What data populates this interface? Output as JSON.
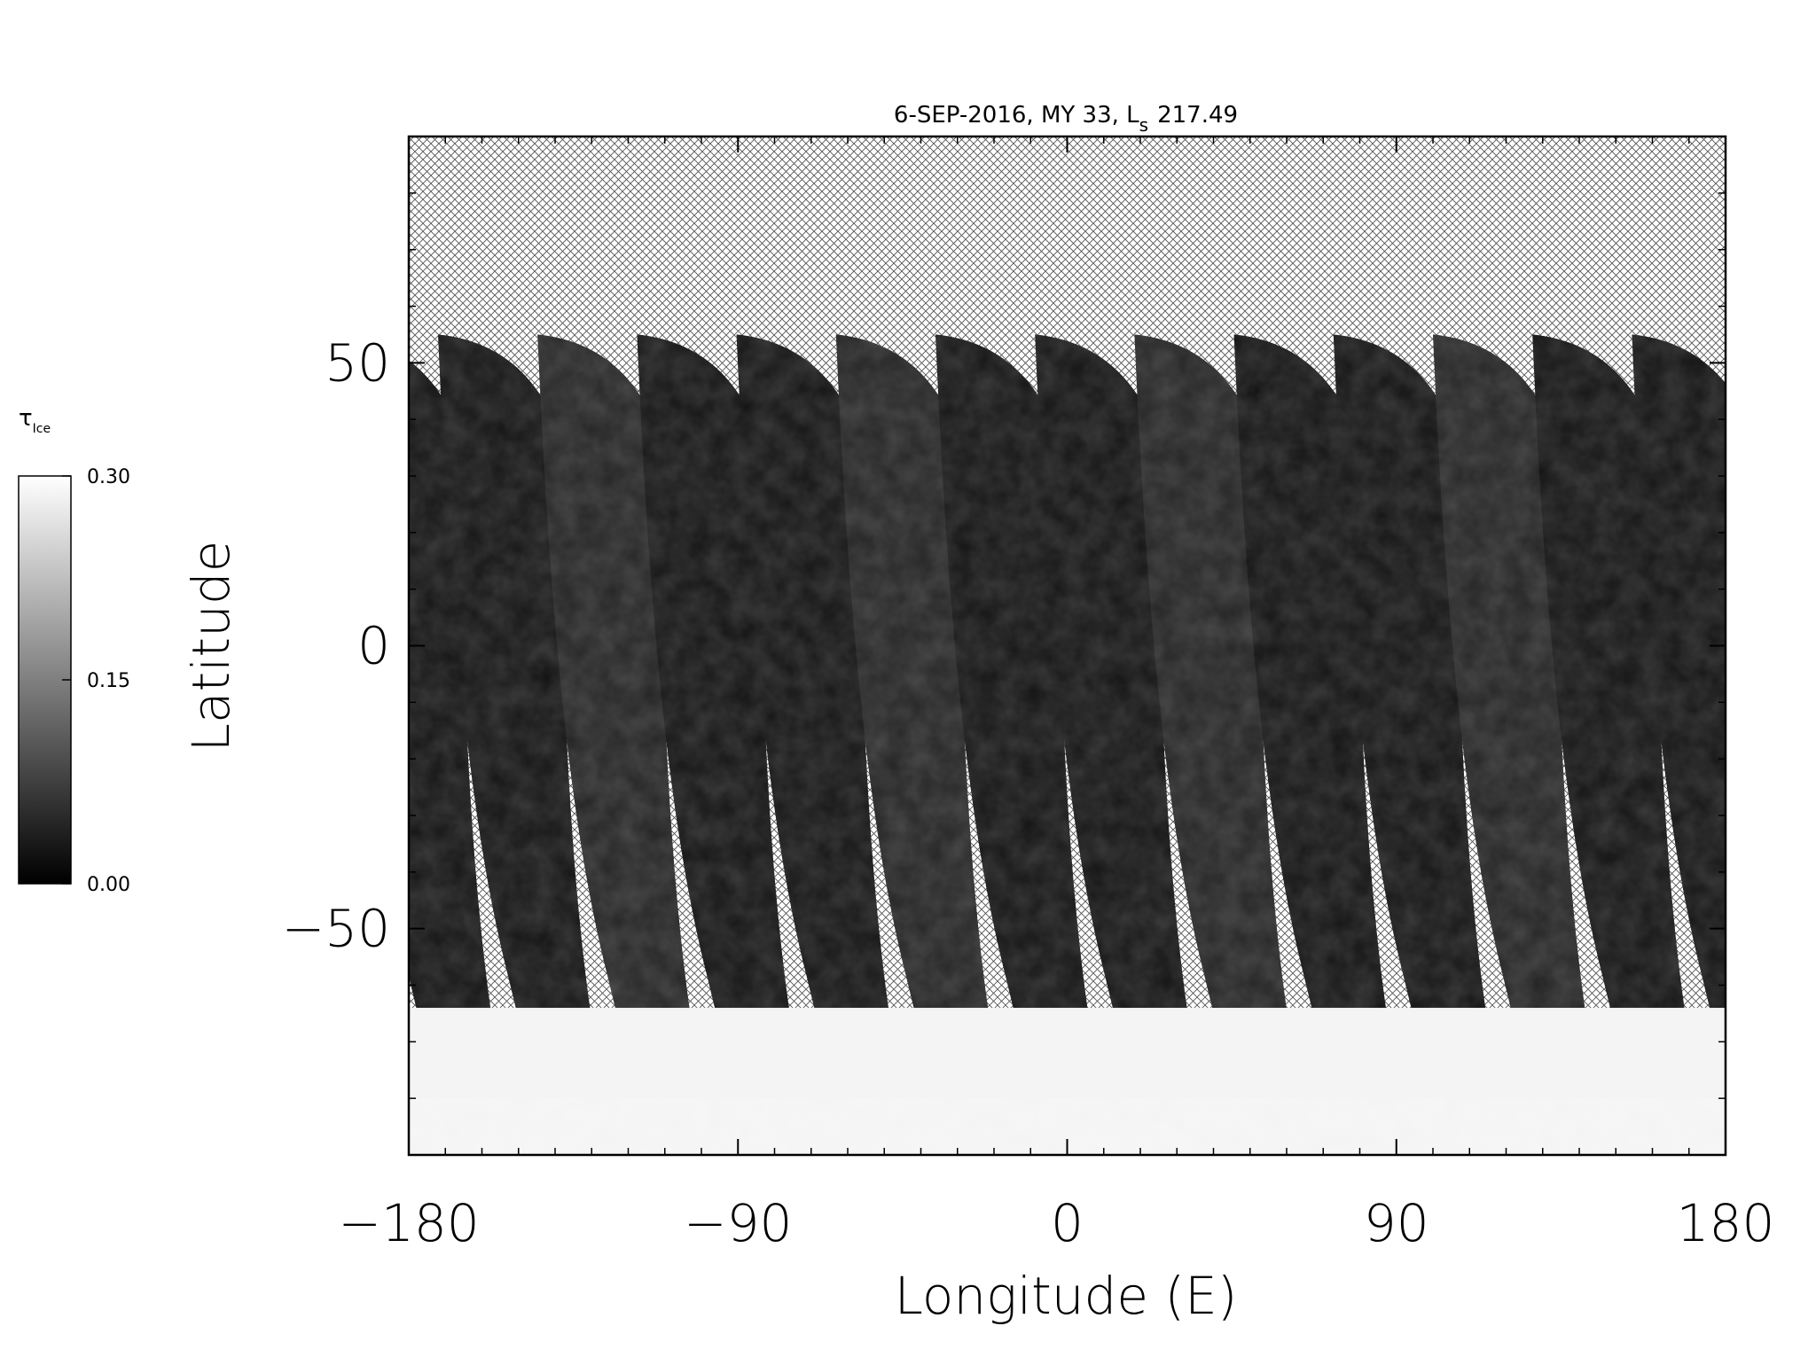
{
  "chart_data": {
    "type": "map",
    "title": "6-SEP-2016, MY 33,  L",
    "title_subscript": "s",
    "title_suffix": "217.49",
    "xlabel": "Longitude (E)",
    "ylabel": "Latitude",
    "xlim": [
      -180,
      180
    ],
    "ylim": [
      -90,
      90
    ],
    "xticks": [
      {
        "value": -180,
        "label": "−180"
      },
      {
        "value": -90,
        "label": "−90"
      },
      0,
      90,
      180
    ],
    "yticks": [
      {
        "value": -50,
        "label": "−50"
      },
      0,
      50
    ],
    "colorbar": {
      "label": "τ",
      "label_subscript": "Ice",
      "lim": [
        0,
        0.3
      ],
      "ticks": [
        {
          "value": 0,
          "label": "0.00"
        },
        {
          "value": 0.15,
          "label": "0.15"
        },
        {
          "value": 0.3,
          "label": "0.30"
        }
      ],
      "colors": [
        "#000000",
        "#ffffff"
      ]
    }
  }
}
